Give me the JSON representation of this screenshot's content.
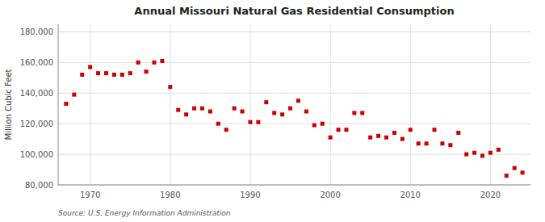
{
  "chart_data": {
    "type": "scatter",
    "title": "Annual Missouri Natural Gas Residential Consumption",
    "ylabel": "Million Cubic Feet",
    "annotations": [
      "Source: U.S. Energy Information Administration"
    ],
    "color": "#cc0000",
    "marker": "square",
    "grid": true,
    "xlim": [
      1966,
      2025
    ],
    "xticks": [
      1970,
      1980,
      1990,
      2000,
      2010,
      2020
    ],
    "ylim": [
      80000,
      185000
    ],
    "yticks": [
      {
        "value": 80000,
        "label": "80,000"
      },
      {
        "value": 100000,
        "label": "100,000"
      },
      {
        "value": 120000,
        "label": "120,000"
      },
      {
        "value": 140000,
        "label": "140,000"
      },
      {
        "value": 160000,
        "label": "160,000"
      },
      {
        "value": 180000,
        "label": "180,000"
      }
    ],
    "x": [
      1967,
      1968,
      1969,
      1970,
      1971,
      1972,
      1973,
      1974,
      1975,
      1976,
      1977,
      1978,
      1979,
      1980,
      1981,
      1982,
      1983,
      1984,
      1985,
      1986,
      1987,
      1988,
      1989,
      1990,
      1991,
      1992,
      1993,
      1994,
      1995,
      1996,
      1997,
      1998,
      1999,
      2000,
      2001,
      2002,
      2003,
      2004,
      2005,
      2006,
      2007,
      2008,
      2009,
      2010,
      2011,
      2012,
      2013,
      2014,
      2015,
      2016,
      2017,
      2018,
      2019,
      2020,
      2021,
      2022,
      2023,
      2024
    ],
    "values": [
      133000,
      139000,
      152000,
      157000,
      153000,
      153000,
      152000,
      152000,
      153000,
      160000,
      154000,
      160000,
      161000,
      144000,
      129000,
      126000,
      130000,
      130000,
      128000,
      120000,
      116000,
      130000,
      128000,
      121000,
      121000,
      134000,
      127000,
      126000,
      130000,
      135000,
      128000,
      119000,
      120000,
      111000,
      116000,
      116000,
      127000,
      127000,
      111000,
      112000,
      111000,
      114000,
      110000,
      116000,
      107000,
      107000,
      116000,
      107000,
      106000,
      114000,
      100000,
      101000,
      99000,
      101000,
      103000,
      86000,
      91000,
      88000
    ]
  }
}
